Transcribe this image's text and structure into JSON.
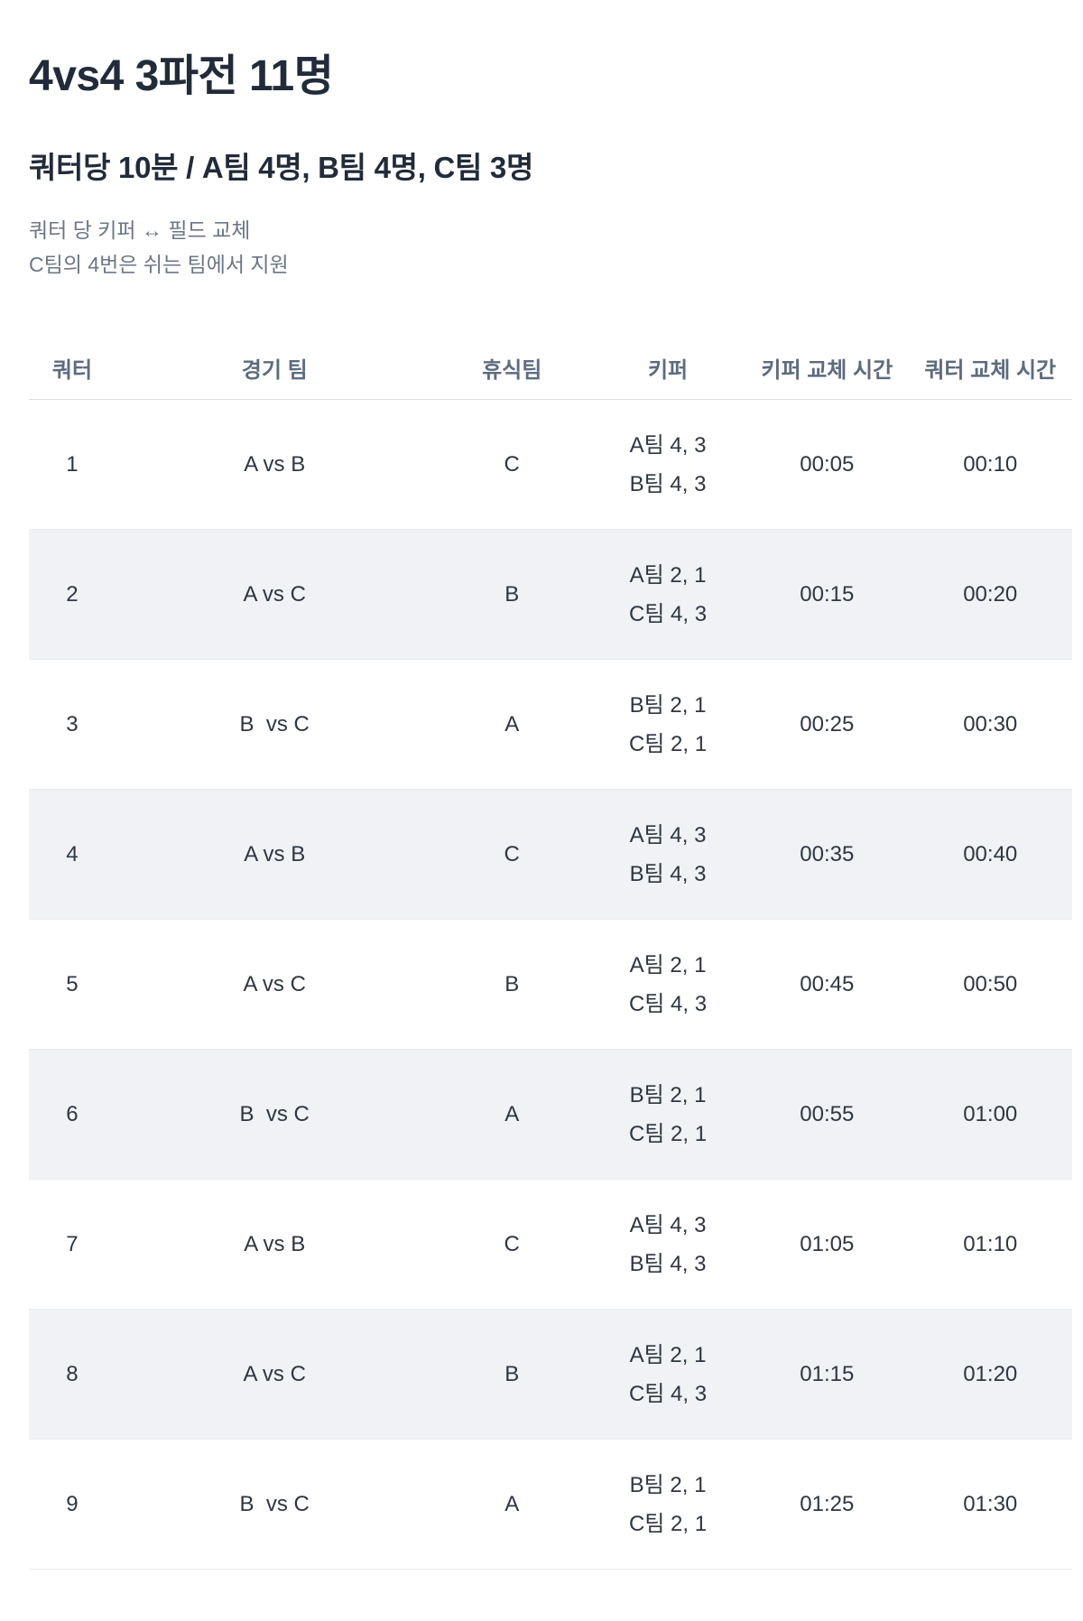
{
  "page": {
    "title": "4vs4 3파전 11명",
    "subtitle": "쿼터당 10분 / A팀 4명, B팀 4명, C팀 3명",
    "notes": [
      "쿼터 당 키퍼 ↔ 필드 교체",
      "C팀의 4번은 쉬는 팀에서 지원"
    ]
  },
  "table": {
    "columns": [
      "쿼터",
      "경기 팀",
      "휴식팀",
      "키퍼",
      "키퍼 교체 시간",
      "쿼터 교체 시간"
    ],
    "rows": [
      {
        "quarter": "1",
        "match": "A vs B",
        "resting": "C",
        "keepers": [
          "A팀 4, 3",
          "B팀 4, 3"
        ],
        "keeper_swap": "00:05",
        "quarter_swap": "00:10"
      },
      {
        "quarter": "2",
        "match": "A vs C",
        "resting": "B",
        "keepers": [
          "A팀 2, 1",
          "C팀 4, 3"
        ],
        "keeper_swap": "00:15",
        "quarter_swap": "00:20"
      },
      {
        "quarter": "3",
        "match": "B  vs C",
        "resting": "A",
        "keepers": [
          "B팀 2, 1",
          "C팀 2, 1"
        ],
        "keeper_swap": "00:25",
        "quarter_swap": "00:30"
      },
      {
        "quarter": "4",
        "match": "A vs B",
        "resting": "C",
        "keepers": [
          "A팀 4, 3",
          "B팀 4, 3"
        ],
        "keeper_swap": "00:35",
        "quarter_swap": "00:40"
      },
      {
        "quarter": "5",
        "match": "A vs C",
        "resting": "B",
        "keepers": [
          "A팀 2, 1",
          "C팀 4, 3"
        ],
        "keeper_swap": "00:45",
        "quarter_swap": "00:50"
      },
      {
        "quarter": "6",
        "match": "B  vs C",
        "resting": "A",
        "keepers": [
          "B팀 2, 1",
          "C팀 2, 1"
        ],
        "keeper_swap": "00:55",
        "quarter_swap": "01:00"
      },
      {
        "quarter": "7",
        "match": "A vs B",
        "resting": "C",
        "keepers": [
          "A팀 4, 3",
          "B팀 4, 3"
        ],
        "keeper_swap": "01:05",
        "quarter_swap": "01:10"
      },
      {
        "quarter": "8",
        "match": "A vs C",
        "resting": "B",
        "keepers": [
          "A팀 2, 1",
          "C팀 4, 3"
        ],
        "keeper_swap": "01:15",
        "quarter_swap": "01:20"
      },
      {
        "quarter": "9",
        "match": "B  vs C",
        "resting": "A",
        "keepers": [
          "B팀 2, 1",
          "C팀 2, 1"
        ],
        "keeper_swap": "01:25",
        "quarter_swap": "01:30"
      }
    ]
  },
  "colors": {
    "title_text": "#222b3a",
    "body_text": "#2f3642",
    "note_text": "#6b7687",
    "header_text": "#5d6b7e",
    "zebra_row_bg": "#f0f2f5",
    "rule_line": "#dce0e5"
  }
}
